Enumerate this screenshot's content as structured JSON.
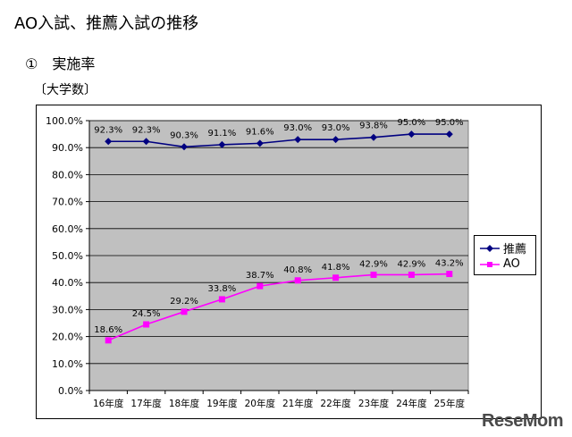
{
  "header": {
    "title": "AO入試、推薦入試の推移",
    "subtitle": "①　実施率",
    "unit": "〔大学数〕"
  },
  "brand": {
    "text": "ReseMom"
  },
  "colors": {
    "suisen": "#000080",
    "ao": "#ff00ff",
    "plot_bg": "#c0c0c0"
  },
  "chart_data": {
    "type": "line",
    "categories": [
      "16年度",
      "17年度",
      "18年度",
      "19年度",
      "20年度",
      "21年度",
      "22年度",
      "23年度",
      "24年度",
      "25年度"
    ],
    "series": [
      {
        "name": "推薦",
        "values": [
          92.3,
          92.3,
          90.3,
          91.1,
          91.6,
          93.0,
          93.0,
          93.8,
          95.0,
          95.0
        ],
        "labels": [
          "92.3%",
          "92.3%",
          "90.3%",
          "91.1%",
          "91.6%",
          "93.0%",
          "93.0%",
          "93.8%",
          "95.0%",
          "95.0%"
        ]
      },
      {
        "name": "AO",
        "values": [
          18.6,
          24.5,
          29.2,
          33.8,
          38.7,
          40.8,
          41.8,
          42.9,
          42.9,
          43.2
        ],
        "labels": [
          "18.6%",
          "24.5%",
          "29.2%",
          "33.8%",
          "38.7%",
          "40.8%",
          "41.8%",
          "42.9%",
          "42.9%",
          "43.2%"
        ]
      }
    ],
    "yticks": [
      "100.0%",
      "90.0%",
      "80.0%",
      "70.0%",
      "60.0%",
      "50.0%",
      "40.0%",
      "30.0%",
      "20.0%",
      "10.0%",
      "0.0%"
    ],
    "ylim": [
      0,
      100
    ],
    "grid": true,
    "legend": "right"
  }
}
